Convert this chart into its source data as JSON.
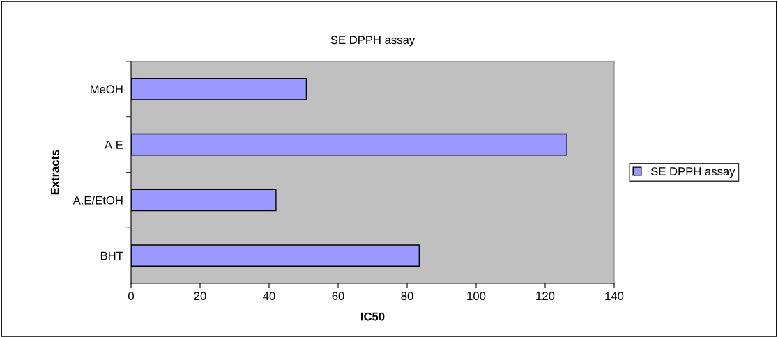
{
  "chart_data": {
    "type": "bar",
    "orientation": "horizontal",
    "title": "SE DPPH assay",
    "xlabel": "IC50",
    "ylabel": "Extracts",
    "categories": [
      "MeOH",
      "A.E",
      "A.E/EtOH",
      "BHT"
    ],
    "series": [
      {
        "name": "SE DPPH assay",
        "color": "#9999ff",
        "values": [
          50.8,
          126.3,
          42.0,
          83.5
        ]
      }
    ],
    "xlim": [
      0,
      140
    ],
    "xticks": [
      0,
      20,
      40,
      60,
      80,
      100,
      120,
      140
    ],
    "grid": false,
    "legend": "right"
  }
}
